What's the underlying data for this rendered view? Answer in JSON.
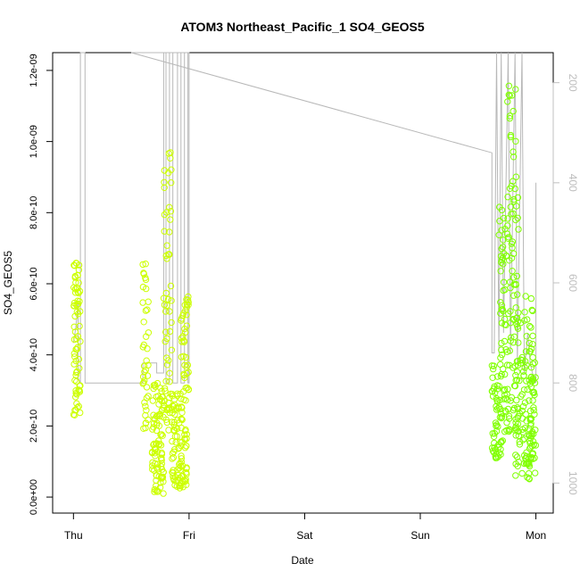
{
  "chart_data": {
    "type": "scatter",
    "title": "ATOM3 Northeast_Pacific_1 SO4_GEOS5",
    "xlabel": "Date",
    "ylabel": "SO4_GEOS5",
    "x_tick_labels": [
      "Thu",
      "Fri",
      "Sat",
      "Sun",
      "Mon"
    ],
    "x_ticks_days": [
      0,
      1,
      2,
      3,
      4
    ],
    "xlim_days": [
      -0.18,
      4.15
    ],
    "ylim": [
      -4.5e-11,
      1.25e-09
    ],
    "y_ticks": [
      0,
      2e-10,
      4e-10,
      6e-10,
      8e-10,
      1e-09,
      1.2e-09
    ],
    "y_tick_labels": [
      "0.0e+00",
      "2.0e-10",
      "4.0e-10",
      "6.0e-10",
      "8.0e-10",
      "1.0e-09",
      "1.2e-09"
    ],
    "right_axis": {
      "label": "",
      "ticks": [
        200,
        400,
        600,
        800,
        1000
      ],
      "tick_labels": [
        "200",
        "400",
        "600",
        "800",
        "1000"
      ],
      "lim_top_to_bottom": [
        140,
        1060
      ],
      "color": "#bdbdbd"
    },
    "grid": false,
    "legend": "none",
    "colors": {
      "segment_1": "#ccff00",
      "segment_2": "#80ff00",
      "pressure_trace": "#b8b8b8"
    },
    "series": [
      {
        "clusters": [
          {
            "x_range": [
              0.0,
              0.06
            ],
            "y_range": [
              2.3e-10,
              6.6e-10
            ],
            "count": 70
          },
          {
            "x_range": [
              0.6,
              0.65
            ],
            "y_range": [
              1.9e-10,
              6.6e-10
            ],
            "count": 40
          },
          {
            "x_range": [
              0.68,
              0.78
            ],
            "y_range": [
              1e-11,
              3.3e-10
            ],
            "count": 90
          },
          {
            "x_range": [
              0.78,
              0.85
            ],
            "y_range": [
              1.8e-10,
              9.7e-10
            ],
            "count": 60
          },
          {
            "x_range": [
              0.85,
              0.98
            ],
            "y_range": [
              2.5e-11,
              3e-10
            ],
            "count": 100
          },
          {
            "x_range": [
              0.93,
              1.0
            ],
            "y_range": [
              2.7e-10,
              5.8e-10
            ],
            "count": 40
          }
        ]
      },
      {
        "clusters": [
          {
            "x_range": [
              3.62,
              3.68
            ],
            "y_range": [
              1.1e-10,
              3.7e-10
            ],
            "count": 40
          },
          {
            "x_range": [
              3.68,
              3.75
            ],
            "y_range": [
              1.2e-10,
              8.2e-10
            ],
            "count": 70
          },
          {
            "x_range": [
              3.75,
              3.85
            ],
            "y_range": [
              1.8e-10,
              1.16e-09
            ],
            "count": 90
          },
          {
            "x_range": [
              3.82,
              3.98
            ],
            "y_range": [
              4e-11,
              5.8e-10
            ],
            "count": 110
          },
          {
            "x_range": [
              3.94,
              4.0
            ],
            "y_range": [
              4e-11,
              4.6e-10
            ],
            "count": 40
          }
        ]
      }
    ]
  }
}
